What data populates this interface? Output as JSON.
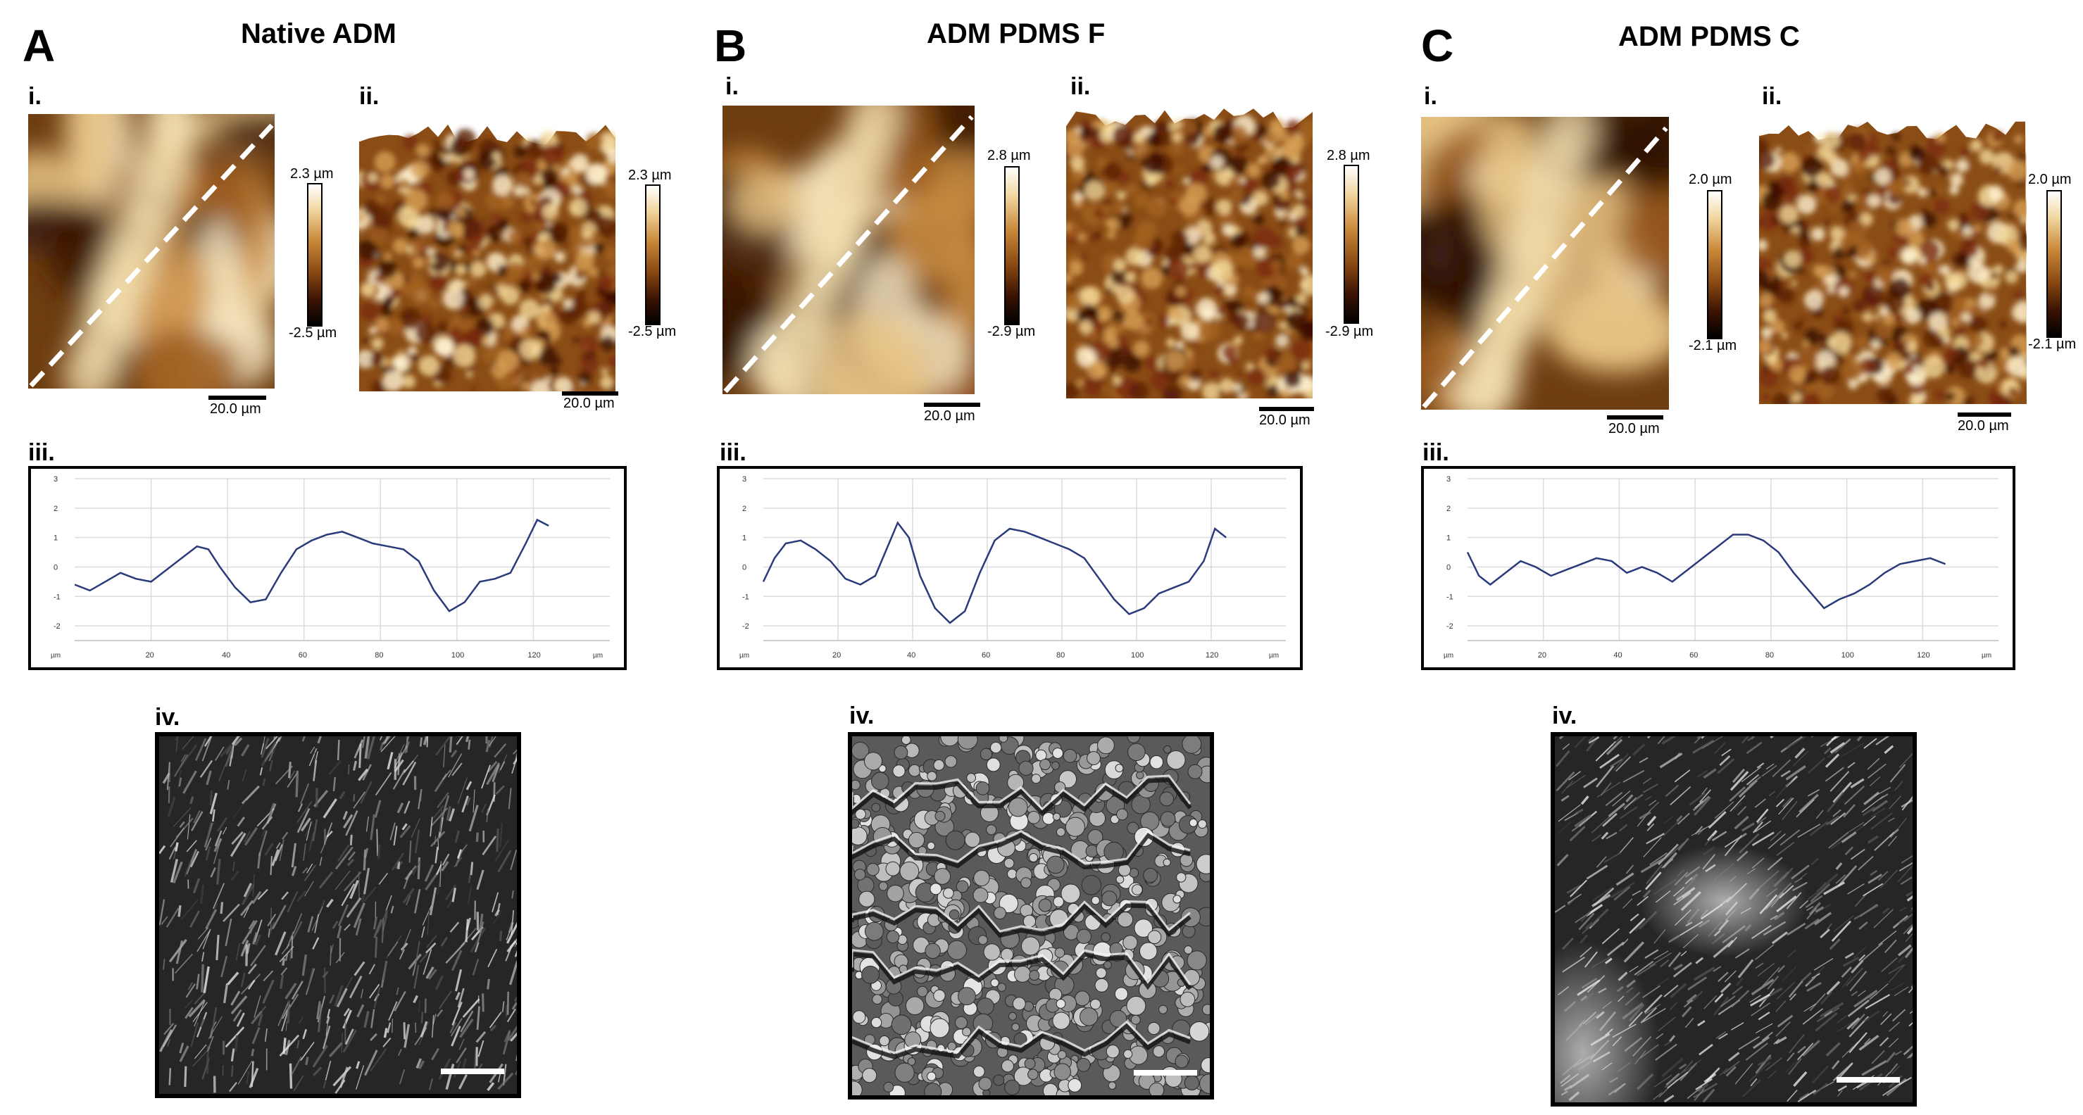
{
  "panels": [
    {
      "letter": "A",
      "title": "Native ADM",
      "label_i": "i.",
      "label_ii": "ii.",
      "label_iii": "iii.",
      "label_iv": "iv.",
      "colorbar_2d": {
        "max": "2.3 µm",
        "min": "-2.5 µm"
      },
      "colorbar_3d": {
        "max": "2.3 µm",
        "min": "-2.5 µm"
      },
      "scale_2d": "20.0 µm",
      "scale_3d": "20.0 µm",
      "profile": {
        "y_ticks": [
          "3",
          "2",
          "1",
          "0",
          "-1",
          "-2"
        ],
        "x_ticks": [
          "20",
          "40",
          "60",
          "80",
          "100",
          "120"
        ],
        "x_unit_left": "µm",
        "x_unit_right": "µm",
        "x": [
          0,
          4,
          8,
          12,
          16,
          20,
          24,
          28,
          32,
          35,
          38,
          42,
          46,
          50,
          54,
          58,
          62,
          66,
          70,
          74,
          78,
          82,
          86,
          90,
          94,
          98,
          102,
          106,
          110,
          114,
          118,
          121,
          124
        ],
        "y": [
          -0.6,
          -0.8,
          -0.5,
          -0.2,
          -0.4,
          -0.5,
          -0.1,
          0.3,
          0.7,
          0.6,
          0.0,
          -0.7,
          -1.2,
          -1.1,
          -0.2,
          0.6,
          0.9,
          1.1,
          1.2,
          1.0,
          0.8,
          0.7,
          0.6,
          0.2,
          -0.8,
          -1.5,
          -1.2,
          -0.5,
          -0.4,
          -0.2,
          0.8,
          1.6,
          1.4
        ]
      }
    },
    {
      "letter": "B",
      "title": "ADM PDMS F",
      "label_i": "i.",
      "label_ii": "ii.",
      "label_iii": "iii.",
      "label_iv": "iv.",
      "colorbar_2d": {
        "max": "2.8 µm",
        "min": "-2.9 µm"
      },
      "colorbar_3d": {
        "max": "2.8 µm",
        "min": "-2.9 µm"
      },
      "scale_2d": "20.0 µm",
      "scale_3d": "20.0 µm",
      "profile": {
        "y_ticks": [
          "3",
          "2",
          "1",
          "0",
          "-1",
          "-2"
        ],
        "x_ticks": [
          "20",
          "40",
          "60",
          "80",
          "100",
          "120"
        ],
        "x_unit_left": "µm",
        "x_unit_right": "µm",
        "x": [
          0,
          3,
          6,
          10,
          14,
          18,
          22,
          26,
          30,
          33,
          36,
          39,
          42,
          46,
          50,
          54,
          58,
          62,
          66,
          70,
          74,
          78,
          82,
          86,
          90,
          94,
          98,
          102,
          106,
          110,
          114,
          118,
          121,
          124
        ],
        "y": [
          -0.5,
          0.3,
          0.8,
          0.9,
          0.6,
          0.2,
          -0.4,
          -0.6,
          -0.3,
          0.6,
          1.5,
          1.0,
          -0.3,
          -1.4,
          -1.9,
          -1.5,
          -0.2,
          0.9,
          1.3,
          1.2,
          1.0,
          0.8,
          0.6,
          0.3,
          -0.4,
          -1.1,
          -1.6,
          -1.4,
          -0.9,
          -0.7,
          -0.5,
          0.2,
          1.3,
          1.0
        ]
      }
    },
    {
      "letter": "C",
      "title": "ADM PDMS C",
      "label_i": "i.",
      "label_ii": "ii.",
      "label_iii": "iii.",
      "label_iv": "iv.",
      "colorbar_2d": {
        "max": "2.0 µm",
        "min": "-2.1 µm"
      },
      "colorbar_3d": {
        "max": "2.0 µm",
        "min": "-2.1 µm"
      },
      "scale_2d": "20.0 µm",
      "scale_3d": "20.0 µm",
      "profile": {
        "y_ticks": [
          "3",
          "2",
          "1",
          "0",
          "-1",
          "-2"
        ],
        "x_ticks": [
          "20",
          "40",
          "60",
          "80",
          "100",
          "120"
        ],
        "x_unit_left": "µm",
        "x_unit_right": "µm",
        "x": [
          0,
          3,
          6,
          10,
          14,
          18,
          22,
          26,
          30,
          34,
          38,
          42,
          46,
          50,
          54,
          58,
          62,
          66,
          70,
          74,
          78,
          82,
          86,
          90,
          94,
          98,
          102,
          106,
          110,
          114,
          118,
          122,
          126
        ],
        "y": [
          0.5,
          -0.3,
          -0.6,
          -0.2,
          0.2,
          0.0,
          -0.3,
          -0.1,
          0.1,
          0.3,
          0.2,
          -0.2,
          0.0,
          -0.2,
          -0.5,
          -0.1,
          0.3,
          0.7,
          1.1,
          1.1,
          0.9,
          0.5,
          -0.2,
          -0.8,
          -1.4,
          -1.1,
          -0.9,
          -0.6,
          -0.2,
          0.1,
          0.2,
          0.3,
          0.1
        ]
      }
    }
  ]
}
